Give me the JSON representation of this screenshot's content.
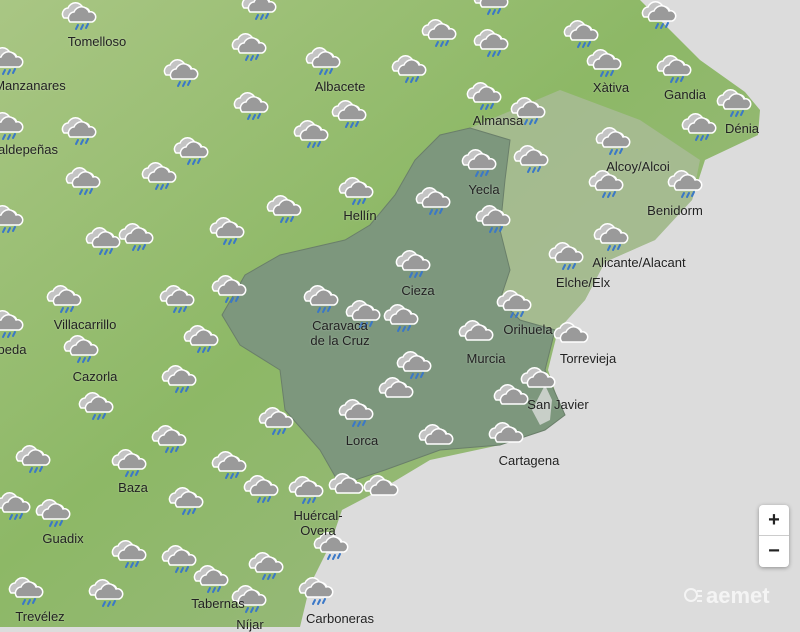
{
  "map": {
    "colors": {
      "sea": "#dcdcdc",
      "land_light": "#b9cf8e",
      "land_dark": "#7fa75a",
      "region_highlight": "#7e9a7f",
      "coast_zone": "#a9b897",
      "rain_drop": "#3a78c8",
      "cloud_gray": "#9a9a9a",
      "cloud_outline": "#ffffff"
    },
    "cities": [
      "Tomelloso",
      "Manzanares",
      "aldepeñas",
      "Albacete",
      "Almansa",
      "Xàtiva",
      "Gandia",
      "Dénia",
      "Alcoy/Alcoi",
      "Yecla",
      "Benidorm",
      "Hellín",
      "Alicante/Alacant",
      "Elche/Elx",
      "Cieza",
      "Villacarrillo",
      "beda",
      "Caravaca\nde la Cruz",
      "Orihuela",
      "Murcia",
      "Torrevieja",
      "Cazorla",
      "San Javier",
      "Lorca",
      "Cartagena",
      "Baza",
      "Huércal-\nOvera",
      "Guadix",
      "Tabernas",
      "Trevélez",
      "Níjar",
      "Carboneras"
    ],
    "forecast_icons": [
      "rain",
      "rain",
      "rain",
      "rain",
      "rain",
      "rain",
      "rain",
      "rain",
      "rain",
      "rain",
      "rain",
      "rain",
      "rain",
      "rain",
      "rain",
      "rain",
      "rain",
      "rain",
      "rain",
      "rain",
      "rain",
      "rain",
      "rain",
      "rain",
      "rain",
      "rain",
      "rain",
      "rain",
      "rain",
      "rain",
      "rain",
      "rain",
      "rain",
      "rain",
      "rain",
      "rain",
      "rain",
      "rain",
      "rain",
      "rain",
      "rain",
      "rain",
      "rain",
      "rain",
      "rain",
      "rain",
      "rain",
      "rain",
      "rain",
      "rain",
      "rain",
      "rain",
      "rain",
      "rain",
      "rain",
      "rain",
      "rain",
      "rain",
      "rain",
      "rain",
      "rain",
      "rain",
      "rain",
      "rain",
      "rain",
      "rain",
      "rain",
      "rain",
      "rain",
      "rain",
      "rain",
      "rain",
      "rain",
      "rain",
      "rain",
      "cloud",
      "cloud",
      "cloud",
      "cloud",
      "cloud",
      "cloud",
      "cloud",
      "cloud",
      "cloud"
    ]
  },
  "controls": {
    "zoom_in": "+",
    "zoom_out": "−"
  },
  "brand": {
    "logo_text": "aemet"
  }
}
